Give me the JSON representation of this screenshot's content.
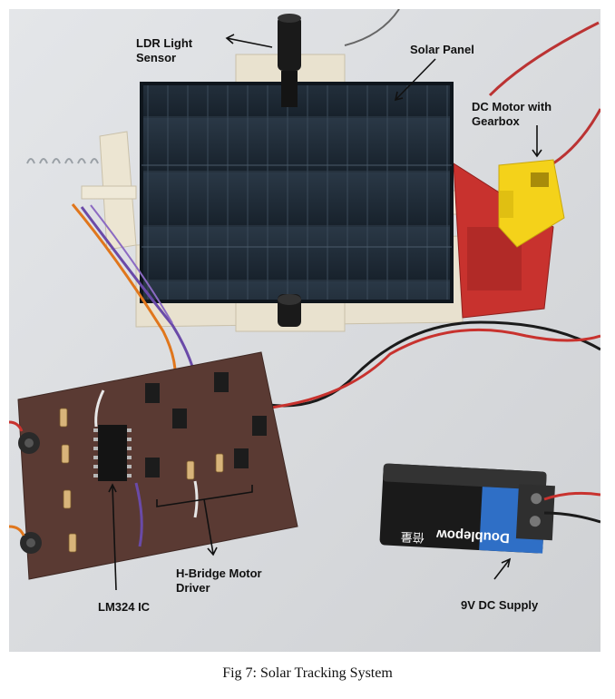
{
  "labels": {
    "ldr": "LDR Light\nSensor",
    "solar_panel": "Solar Panel",
    "dc_motor": "DC Motor with\nGearbox",
    "h_bridge": "H-Bridge Motor\nDriver",
    "lm324": "LM324 IC",
    "supply": "9V DC Supply"
  },
  "battery_brand": "Doublepow",
  "battery_brand_cn": "倍量",
  "caption": "Fig 7: Solar Tracking System",
  "colors": {
    "background": "#dfe1e4",
    "panel": "#1d2a36",
    "pcb": "#5a3a33",
    "motor": "#f4d21a",
    "mount_red": "#c8322e",
    "battery_blue": "#2f6fc6"
  }
}
